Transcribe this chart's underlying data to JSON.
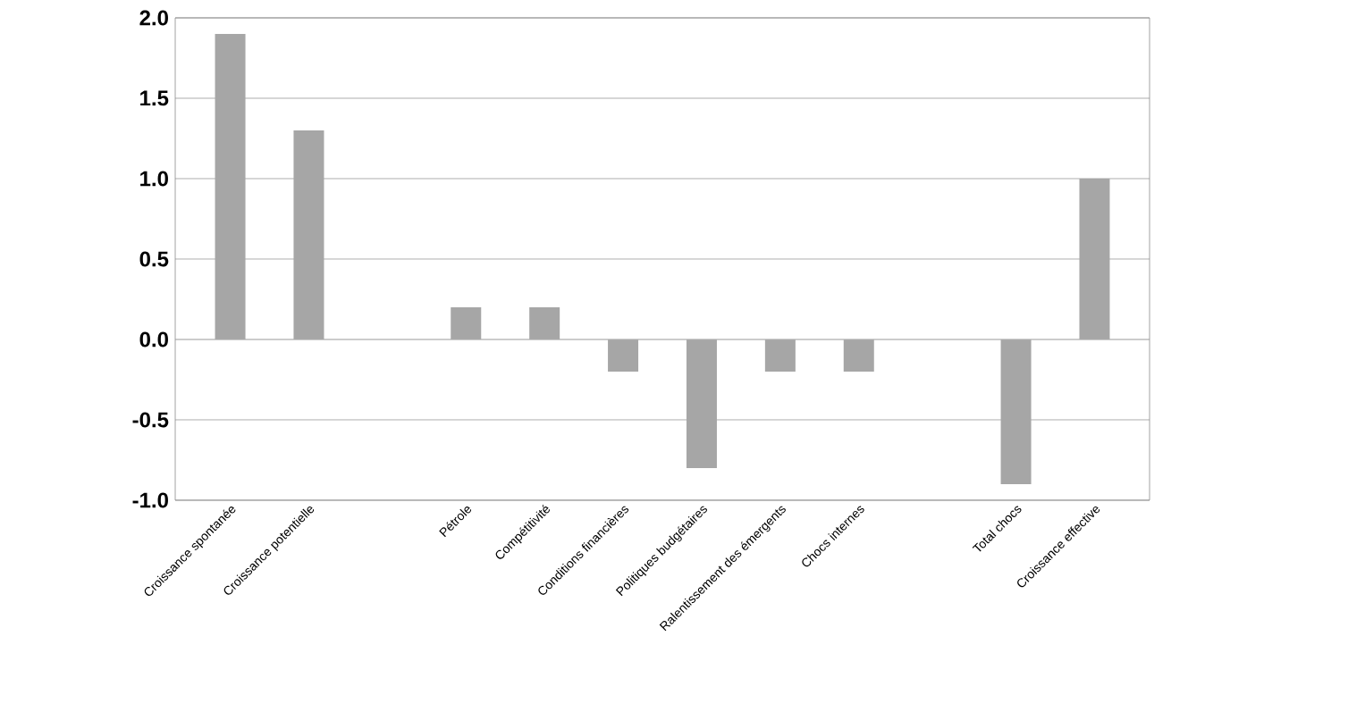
{
  "chart_data": {
    "type": "bar",
    "categories": [
      "Croissance spontanée",
      "Croissance potentielle",
      null,
      "Pétrole",
      "Compétitivité",
      "Conditions financières",
      "Politiques budgétaires",
      "Ralentissement des émergents",
      "Chocs internes",
      null,
      "Total chocs",
      "Croissance effective"
    ],
    "values": [
      1.9,
      1.3,
      null,
      0.2,
      0.2,
      -0.2,
      -0.8,
      -0.2,
      -0.2,
      null,
      -0.9,
      1.0
    ],
    "color": "#a6a6a6",
    "ylim": [
      -1.0,
      2.0
    ],
    "yticks": [
      {
        "value": -1.0,
        "label": "-1.0"
      },
      {
        "value": -0.5,
        "label": "-0.5"
      },
      {
        "value": 0.0,
        "label": "0.0"
      },
      {
        "value": 0.5,
        "label": "0.5"
      },
      {
        "value": 1.0,
        "label": "1.0"
      },
      {
        "value": 1.5,
        "label": "1.5"
      },
      {
        "value": 2.0,
        "label": "2.0"
      }
    ],
    "grid": "y"
  }
}
